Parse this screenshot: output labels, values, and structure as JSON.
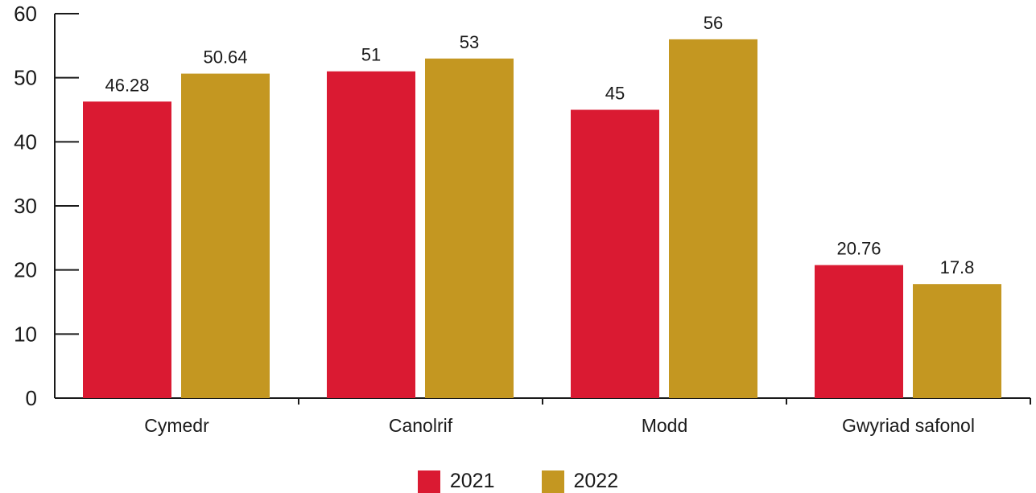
{
  "chart_data": {
    "type": "bar",
    "categories": [
      "Cymedr",
      "Canolrif",
      "Modd",
      "Gwyriad safonol"
    ],
    "series": [
      {
        "name": "2021",
        "values": [
          46.28,
          51,
          45,
          20.76
        ],
        "labels": [
          "46.28",
          "51",
          "45",
          "20.76"
        ],
        "color": "#da1a32"
      },
      {
        "name": "2022",
        "values": [
          50.64,
          53,
          56,
          17.8
        ],
        "labels": [
          "50.64",
          "53",
          "56",
          "17.8"
        ],
        "color": "#c49721"
      }
    ],
    "ylim": [
      0,
      60
    ],
    "yticks": [
      "0",
      "10",
      "20",
      "30",
      "40",
      "50",
      "60"
    ],
    "grid": false,
    "legend": "bottom-center"
  }
}
